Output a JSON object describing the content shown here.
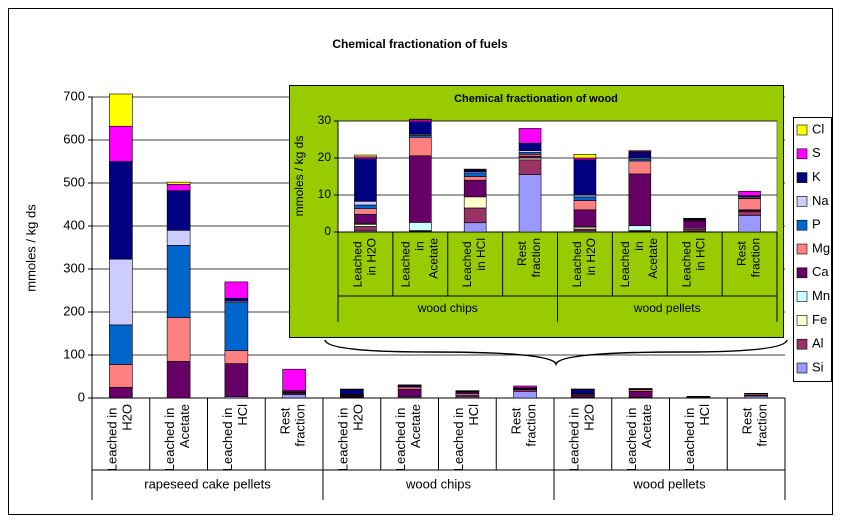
{
  "chart_data": [
    {
      "type": "bar",
      "stacked": true,
      "title": "Chemical fractionation of fuels",
      "y_label": "mmoles / kg ds",
      "groups": [
        {
          "name": "rapeseed cake pellets",
          "categories": [
            "Leached in H2O",
            "Leached in Acetate",
            "Leached in HCl",
            "Rest fraction"
          ]
        },
        {
          "name": "wood chips",
          "categories": [
            "Leached in H2O",
            "Leached in Acetate",
            "Leached in HCl",
            "Rest fraction"
          ]
        },
        {
          "name": "wood pellets",
          "categories": [
            "Leached in H2O",
            "Leached in Acetate",
            "Leached in HCl",
            "Rest fraction"
          ]
        }
      ],
      "ylim": [
        0,
        700
      ],
      "yticks": [
        0,
        100,
        200,
        300,
        400,
        500,
        600,
        700
      ],
      "grid": true,
      "legend": "right",
      "series": [
        {
          "name": "Si",
          "color": "#9999ff",
          "values": [
            0,
            0,
            3,
            8,
            0.3,
            0,
            2.5,
            15.5,
            0.3,
            0,
            0.2,
            4.5
          ]
        },
        {
          "name": "Al",
          "color": "#993366",
          "values": [
            0,
            0,
            0,
            3,
            1.2,
            0.2,
            4,
            4,
            0.5,
            0.2,
            0.5,
            1
          ]
        },
        {
          "name": "Fe",
          "color": "#ffffcc",
          "values": [
            0,
            0,
            0,
            1,
            0.5,
            0.2,
            3,
            0.5,
            0.5,
            0.2,
            0.3,
            0.2
          ]
        },
        {
          "name": "Mn",
          "color": "#ccffff",
          "values": [
            0,
            0,
            0,
            0,
            0.3,
            2.2,
            0,
            0,
            0.2,
            1.3,
            0,
            0
          ]
        },
        {
          "name": "Ca",
          "color": "#660066",
          "values": [
            25,
            85,
            77,
            2,
            2.5,
            18,
            4.5,
            0.5,
            4.5,
            14,
            2,
            0.3
          ]
        },
        {
          "name": "Mg",
          "color": "#ff8080",
          "values": [
            53,
            102,
            30,
            2,
            1.5,
            5,
            1,
            0.5,
            2.5,
            3.5,
            0.2,
            3
          ]
        },
        {
          "name": "P",
          "color": "#0066cc",
          "values": [
            92,
            168,
            112,
            0,
            1,
            0.5,
            1,
            0.5,
            1,
            0.5,
            0.2,
            0.2
          ]
        },
        {
          "name": "Na",
          "color": "#ccccff",
          "values": [
            153,
            35,
            3,
            0,
            1,
            0.3,
            0.3,
            0.5,
            0.5,
            0.3,
            0.1,
            0.3
          ]
        },
        {
          "name": "K",
          "color": "#000080",
          "values": [
            227,
            92,
            7,
            1,
            11.5,
            3.4,
            0.4,
            2,
            9.5,
            1.5,
            0.1,
            0.3
          ]
        },
        {
          "name": "S",
          "color": "#ff00ff",
          "values": [
            82,
            15,
            38,
            50,
            0.5,
            0.5,
            0.2,
            4,
            0.5,
            0.3,
            0.1,
            1.2
          ]
        },
        {
          "name": "Cl",
          "color": "#ffff00",
          "values": [
            75,
            5,
            0,
            0,
            0.5,
            0.2,
            0.1,
            0,
            1,
            0.2,
            0,
            0
          ]
        }
      ]
    },
    {
      "type": "bar",
      "stacked": true,
      "title": "Chemical fractionation of wood",
      "y_label": "mmoles / kg ds",
      "groups": [
        {
          "name": "wood chips",
          "categories": [
            "Leached in H2O",
            "Leached in Acetate",
            "Leached in HCl",
            "Rest fraction"
          ]
        },
        {
          "name": "wood pellets",
          "categories": [
            "Leached in H2O",
            "Leached in Acetate",
            "Leached in HCl",
            "Rest fraction"
          ]
        }
      ],
      "ylim": [
        0,
        30
      ],
      "yticks": [
        0,
        10,
        20,
        30
      ],
      "grid": true,
      "background": "#99cc00",
      "series": [
        {
          "color": "#9999ff",
          "values": [
            0.3,
            0,
            2.5,
            15.5,
            0.3,
            0,
            0.2,
            4.5
          ]
        },
        {
          "color": "#993366",
          "values": [
            1.2,
            0.2,
            4,
            4,
            0.5,
            0.2,
            0.5,
            1
          ]
        },
        {
          "color": "#ffffcc",
          "values": [
            0.5,
            0.2,
            3,
            0.5,
            0.5,
            0.2,
            0.3,
            0.2
          ]
        },
        {
          "color": "#ccffff",
          "values": [
            0.3,
            2.2,
            0,
            0,
            0.2,
            1.3,
            0,
            0
          ]
        },
        {
          "color": "#660066",
          "values": [
            2.5,
            18,
            4.5,
            0.5,
            4.5,
            14,
            2,
            0.3
          ]
        },
        {
          "color": "#ff8080",
          "values": [
            1.5,
            5,
            1,
            0.5,
            2.5,
            3.5,
            0.2,
            3
          ]
        },
        {
          "color": "#0066cc",
          "values": [
            1,
            0.5,
            1,
            0.5,
            1,
            0.5,
            0.2,
            0.2
          ]
        },
        {
          "color": "#ccccff",
          "values": [
            1,
            0.3,
            0.3,
            0.5,
            0.5,
            0.3,
            0.1,
            0.3
          ]
        },
        {
          "color": "#000080",
          "values": [
            11.5,
            3.4,
            0.4,
            2,
            9.5,
            1.5,
            0.1,
            0.3
          ]
        },
        {
          "color": "#ff00ff",
          "values": [
            0.5,
            0.5,
            0.2,
            4,
            0.5,
            0.3,
            0.1,
            1.2
          ]
        },
        {
          "color": "#ffff00",
          "values": [
            0.5,
            0.2,
            0.1,
            0,
            1,
            0.2,
            0,
            0
          ]
        }
      ]
    }
  ]
}
